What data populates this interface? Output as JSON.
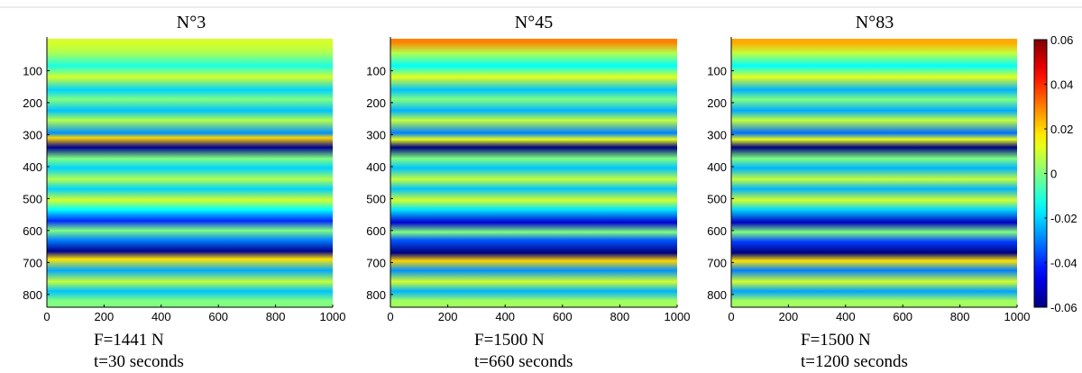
{
  "chart_data": [
    {
      "type": "heatmap",
      "title": "N°3",
      "caption_force": "F=1441 N",
      "caption_time": "t=30 seconds",
      "xlim": [
        0,
        1000
      ],
      "ylim": [
        0,
        840
      ],
      "y_reversed": true,
      "xticks": [
        0,
        200,
        400,
        600,
        800,
        1000
      ],
      "yticks": [
        100,
        200,
        300,
        400,
        500,
        600,
        700,
        800
      ],
      "bands": [
        {
          "y": 15,
          "v": 0.01
        },
        {
          "y": 45,
          "v": 0.005
        },
        {
          "y": 85,
          "v": -0.012
        },
        {
          "y": 120,
          "v": 0.01
        },
        {
          "y": 160,
          "v": -0.02
        },
        {
          "y": 190,
          "v": 0.0
        },
        {
          "y": 225,
          "v": -0.022
        },
        {
          "y": 255,
          "v": 0.006
        },
        {
          "y": 295,
          "v": -0.028
        },
        {
          "y": 310,
          "v": 0.02
        },
        {
          "y": 340,
          "v": -0.058
        },
        {
          "y": 375,
          "v": 0.0
        },
        {
          "y": 405,
          "v": -0.02
        },
        {
          "y": 440,
          "v": 0.006
        },
        {
          "y": 470,
          "v": -0.02
        },
        {
          "y": 505,
          "v": 0.01
        },
        {
          "y": 535,
          "v": -0.015
        },
        {
          "y": 570,
          "v": -0.04
        },
        {
          "y": 600,
          "v": 0.0
        },
        {
          "y": 630,
          "v": -0.03
        },
        {
          "y": 665,
          "v": -0.058
        },
        {
          "y": 690,
          "v": 0.018
        },
        {
          "y": 725,
          "v": -0.025
        },
        {
          "y": 760,
          "v": 0.008
        },
        {
          "y": 790,
          "v": -0.022
        },
        {
          "y": 820,
          "v": 0.0
        }
      ]
    },
    {
      "type": "heatmap",
      "title": "N°45",
      "caption_force": "F=1500 N",
      "caption_time": "t=660 seconds",
      "xlim": [
        0,
        1000
      ],
      "ylim": [
        0,
        840
      ],
      "y_reversed": true,
      "xticks": [
        0,
        200,
        400,
        600,
        800,
        1000
      ],
      "yticks": [
        100,
        200,
        300,
        400,
        500,
        600,
        700,
        800
      ],
      "bands": [
        {
          "y": 10,
          "v": 0.03
        },
        {
          "y": 45,
          "v": 0.006
        },
        {
          "y": 85,
          "v": -0.015
        },
        {
          "y": 120,
          "v": 0.012
        },
        {
          "y": 160,
          "v": -0.022
        },
        {
          "y": 190,
          "v": 0.0
        },
        {
          "y": 225,
          "v": -0.024
        },
        {
          "y": 255,
          "v": 0.008
        },
        {
          "y": 295,
          "v": -0.03
        },
        {
          "y": 315,
          "v": 0.012
        },
        {
          "y": 340,
          "v": -0.06
        },
        {
          "y": 375,
          "v": 0.0
        },
        {
          "y": 405,
          "v": -0.022
        },
        {
          "y": 440,
          "v": 0.008
        },
        {
          "y": 470,
          "v": -0.022
        },
        {
          "y": 505,
          "v": 0.01
        },
        {
          "y": 535,
          "v": -0.018
        },
        {
          "y": 575,
          "v": -0.05
        },
        {
          "y": 605,
          "v": 0.0
        },
        {
          "y": 630,
          "v": -0.035
        },
        {
          "y": 670,
          "v": -0.06
        },
        {
          "y": 695,
          "v": 0.02
        },
        {
          "y": 725,
          "v": -0.028
        },
        {
          "y": 760,
          "v": 0.01
        },
        {
          "y": 790,
          "v": -0.024
        },
        {
          "y": 820,
          "v": 0.004
        }
      ]
    },
    {
      "type": "heatmap",
      "title": "N°83",
      "caption_force": "F=1500 N",
      "caption_time": "t=1200 seconds",
      "xlim": [
        0,
        1000
      ],
      "ylim": [
        0,
        840
      ],
      "y_reversed": true,
      "xticks": [
        0,
        200,
        400,
        600,
        800,
        1000
      ],
      "yticks": [
        100,
        200,
        300,
        400,
        500,
        600,
        700,
        800
      ],
      "bands": [
        {
          "y": 12,
          "v": 0.025
        },
        {
          "y": 45,
          "v": 0.008
        },
        {
          "y": 85,
          "v": -0.015
        },
        {
          "y": 120,
          "v": 0.012
        },
        {
          "y": 160,
          "v": -0.024
        },
        {
          "y": 190,
          "v": 0.0
        },
        {
          "y": 225,
          "v": -0.025
        },
        {
          "y": 255,
          "v": 0.008
        },
        {
          "y": 295,
          "v": -0.032
        },
        {
          "y": 315,
          "v": 0.012
        },
        {
          "y": 340,
          "v": -0.06
        },
        {
          "y": 375,
          "v": 0.0
        },
        {
          "y": 405,
          "v": -0.024
        },
        {
          "y": 440,
          "v": 0.008
        },
        {
          "y": 470,
          "v": -0.024
        },
        {
          "y": 505,
          "v": 0.01
        },
        {
          "y": 535,
          "v": -0.02
        },
        {
          "y": 575,
          "v": -0.052
        },
        {
          "y": 605,
          "v": 0.0
        },
        {
          "y": 635,
          "v": -0.038
        },
        {
          "y": 670,
          "v": -0.06
        },
        {
          "y": 695,
          "v": 0.018
        },
        {
          "y": 725,
          "v": -0.03
        },
        {
          "y": 760,
          "v": 0.01
        },
        {
          "y": 790,
          "v": -0.026
        },
        {
          "y": 820,
          "v": 0.004
        }
      ]
    }
  ],
  "colorbar": {
    "range": [
      -0.06,
      0.06
    ],
    "tick_values": [
      0.06,
      0.04,
      0.02,
      0,
      -0.02,
      -0.04,
      -0.06
    ],
    "tick_labels": [
      "0.06",
      "0.04",
      "0.02",
      "0",
      "-0.02",
      "-0.04",
      "-0.06"
    ],
    "colormap": "jet"
  }
}
